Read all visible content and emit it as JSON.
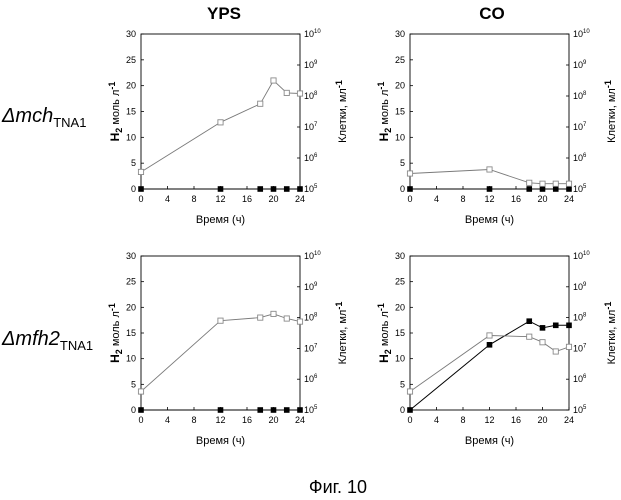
{
  "figure": {
    "caption": "Фиг. 10",
    "column_titles": [
      "YPS",
      "CO"
    ],
    "row_labels": [
      {
        "delta": "Δ",
        "gene": "mch",
        "subscript": "TNA1"
      },
      {
        "delta": "Δ",
        "gene": "mfh2",
        "subscript": "TNA1"
      }
    ]
  },
  "chart_data": [
    {
      "type": "line",
      "title": "YPS",
      "row": "ΔmchTNA1",
      "xlabel": "Время (ч)",
      "ylabel": {
        "main": "H",
        "sub": "2",
        "rest": " моль л",
        "sup": "-1"
      },
      "y2label": {
        "main": "Клетки, мл",
        "sup": "-1"
      },
      "xlim": [
        0,
        24
      ],
      "ylim": [
        0,
        30
      ],
      "xticks": [
        "0",
        "4",
        "8",
        "12",
        "16",
        "20",
        "24"
      ],
      "yticks": [
        "0",
        "5",
        "10",
        "15",
        "20",
        "25",
        "30"
      ],
      "y2ticks": [
        "10^5",
        "10^6",
        "10^7",
        "10^8",
        "10^9",
        "10^10"
      ],
      "series": [
        {
          "name": "H2",
          "marker": "filled-square",
          "axis": "left",
          "x": [
            0,
            12,
            18,
            20,
            22,
            24
          ],
          "y": [
            0,
            0,
            0,
            0,
            0,
            0
          ]
        },
        {
          "name": "cells",
          "marker": "open-square",
          "axis": "right",
          "x": [
            0,
            12,
            18,
            20,
            22,
            24
          ],
          "y": [
            5.55,
            7.15,
            7.75,
            8.5,
            8.1,
            8.08
          ]
        }
      ]
    },
    {
      "type": "line",
      "title": "CO",
      "row": "ΔmchTNA1",
      "xlabel": "Время (ч)",
      "ylabel": {
        "main": "H",
        "sub": "2",
        "rest": " моль л",
        "sup": "-1"
      },
      "y2label": {
        "main": "Клетки, мл",
        "sup": "-1"
      },
      "xlim": [
        0,
        24
      ],
      "ylim": [
        0,
        30
      ],
      "xticks": [
        "0",
        "4",
        "8",
        "12",
        "16",
        "20",
        "24"
      ],
      "yticks": [
        "0",
        "5",
        "10",
        "15",
        "20",
        "25",
        "30"
      ],
      "y2ticks": [
        "10^5",
        "10^6",
        "10^7",
        "10^8",
        "10^9",
        "10^10"
      ],
      "series": [
        {
          "name": "H2",
          "marker": "filled-square",
          "axis": "left",
          "x": [
            0,
            12,
            18,
            20,
            22,
            24
          ],
          "y": [
            0,
            0,
            0,
            0,
            0,
            0
          ]
        },
        {
          "name": "cells",
          "marker": "open-square",
          "axis": "right",
          "x": [
            0,
            12,
            18,
            20,
            22,
            24
          ],
          "y": [
            5.5,
            5.63,
            5.2,
            5.17,
            5.17,
            5.17
          ]
        }
      ]
    },
    {
      "type": "line",
      "title": "YPS",
      "row": "Δmfh2TNA1",
      "xlabel": "Время (ч)",
      "ylabel": {
        "main": "H",
        "sub": "2",
        "rest": " моль л",
        "sup": "-1"
      },
      "y2label": {
        "main": "Клетки, мл",
        "sup": "-1"
      },
      "xlim": [
        0,
        24
      ],
      "ylim": [
        0,
        30
      ],
      "xticks": [
        "0",
        "4",
        "8",
        "12",
        "16",
        "20",
        "24"
      ],
      "yticks": [
        "0",
        "5",
        "10",
        "15",
        "20",
        "25",
        "30"
      ],
      "y2ticks": [
        "10^5",
        "10^6",
        "10^7",
        "10^8",
        "10^9",
        "10^10"
      ],
      "series": [
        {
          "name": "H2",
          "marker": "filled-square",
          "axis": "left",
          "x": [
            0,
            12,
            18,
            20,
            22,
            24
          ],
          "y": [
            0,
            0,
            0,
            0,
            0,
            0
          ]
        },
        {
          "name": "cells",
          "marker": "open-square",
          "axis": "right",
          "x": [
            0,
            12,
            18,
            20,
            22,
            24
          ],
          "y": [
            5.6,
            7.9,
            8.0,
            8.12,
            7.97,
            7.87
          ]
        }
      ]
    },
    {
      "type": "line",
      "title": "CO",
      "row": "Δmfh2TNA1",
      "xlabel": "Время (ч)",
      "ylabel": {
        "main": "H",
        "sub": "2",
        "rest": " моль л",
        "sup": "-1"
      },
      "y2label": {
        "main": "Клетки, мл",
        "sup": "-1"
      },
      "xlim": [
        0,
        24
      ],
      "ylim": [
        0,
        30
      ],
      "xticks": [
        "0",
        "4",
        "8",
        "12",
        "16",
        "20",
        "24"
      ],
      "yticks": [
        "0",
        "5",
        "10",
        "15",
        "20",
        "25",
        "30"
      ],
      "y2ticks": [
        "10^5",
        "10^6",
        "10^7",
        "10^8",
        "10^9",
        "10^10"
      ],
      "series": [
        {
          "name": "H2",
          "marker": "filled-square",
          "axis": "left",
          "x": [
            0,
            12,
            18,
            20,
            22,
            24
          ],
          "y": [
            0,
            12.7,
            17.3,
            16.0,
            16.5,
            16.5
          ]
        },
        {
          "name": "cells",
          "marker": "open-square",
          "axis": "right",
          "x": [
            0,
            12,
            18,
            20,
            22,
            24
          ],
          "y": [
            5.6,
            7.42,
            7.38,
            7.2,
            6.9,
            7.05
          ]
        }
      ]
    }
  ]
}
